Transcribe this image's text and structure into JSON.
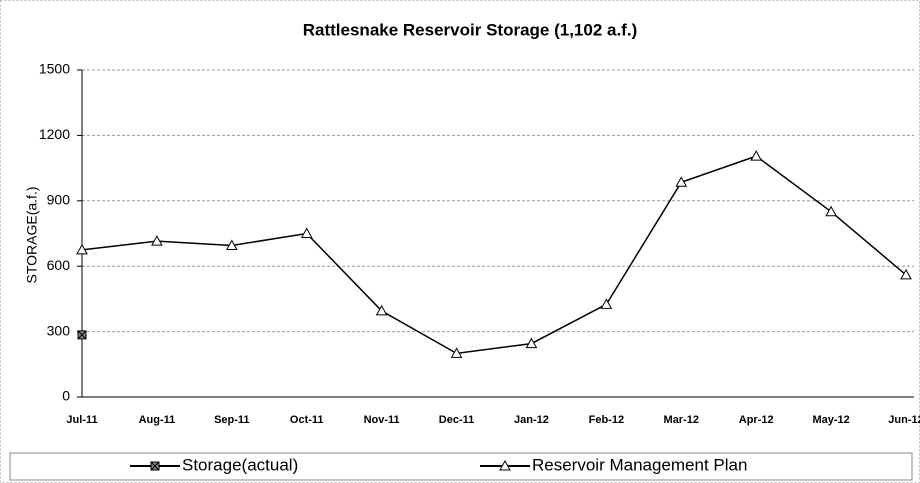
{
  "chart_data": {
    "type": "line",
    "title": "Rattlesnake Reservoir Storage (1,102 a.f.)",
    "y_label": "STORAGE(a.f.)",
    "categories": [
      "Jul-11",
      "Aug-11",
      "Sep-11",
      "Oct-11",
      "Nov-11",
      "Dec-11",
      "Jan-12",
      "Feb-12",
      "Mar-12",
      "Apr-12",
      "May-12",
      "Jun-12"
    ],
    "series": [
      {
        "name": "Storage(actual)",
        "color": "#000000",
        "marker": "square",
        "values": [
          285,
          null,
          null,
          null,
          null,
          null,
          null,
          null,
          null,
          null,
          null,
          null
        ]
      },
      {
        "name": "Reservoir Management Plan",
        "color": "#000000",
        "marker": "triangle",
        "values": [
          675,
          715,
          695,
          750,
          395,
          200,
          245,
          425,
          985,
          1105,
          850,
          560
        ]
      }
    ],
    "ylim": [
      0,
      1500
    ],
    "yticks": [
      0,
      300,
      600,
      900,
      1200,
      1500
    ],
    "grid": true,
    "legend": "bottom"
  }
}
